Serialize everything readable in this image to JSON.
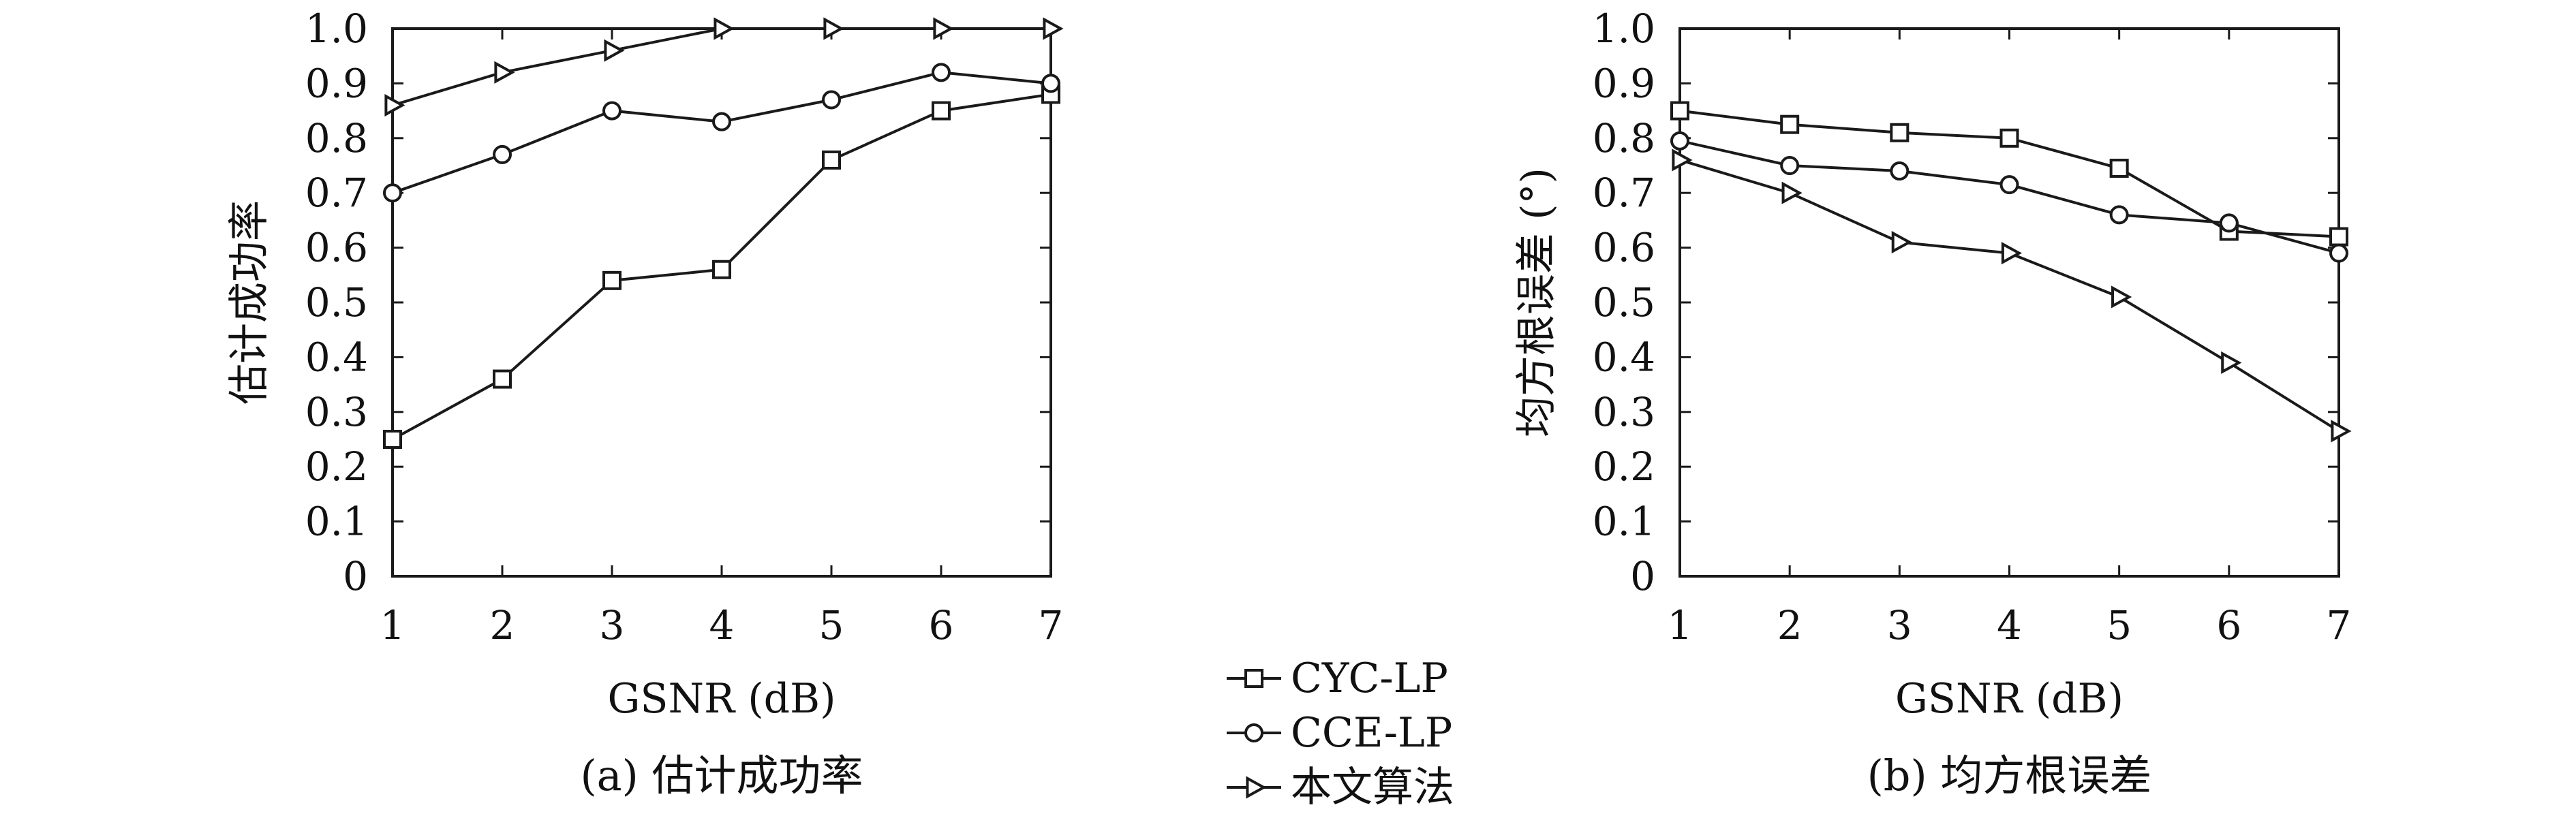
{
  "chart_data": [
    {
      "type": "line",
      "caption": "(a) 估计成功率",
      "xlabel": "GSNR (dB)",
      "ylabel": "估计成功率",
      "x": [
        1,
        2,
        3,
        4,
        5,
        6,
        7
      ],
      "xlim": [
        1,
        7
      ],
      "ylim": [
        0,
        1.0
      ],
      "xticks": [
        "1",
        "2",
        "3",
        "4",
        "5",
        "6",
        "7"
      ],
      "yticks": [
        "0",
        "0.1",
        "0.2",
        "0.3",
        "0.4",
        "0.5",
        "0.6",
        "0.7",
        "0.8",
        "0.9",
        "1.0"
      ],
      "grid": false,
      "series": [
        {
          "name": "CYC-LP",
          "marker": "square",
          "values": [
            0.25,
            0.36,
            0.54,
            0.56,
            0.76,
            0.85,
            0.88
          ]
        },
        {
          "name": "CCE-LP",
          "marker": "circle",
          "values": [
            0.7,
            0.77,
            0.85,
            0.83,
            0.87,
            0.92,
            0.9
          ]
        },
        {
          "name": "本文算法",
          "marker": "triangle-right",
          "values": [
            0.86,
            0.92,
            0.96,
            1.0,
            1.0,
            1.0,
            1.0
          ]
        }
      ]
    },
    {
      "type": "line",
      "caption": "(b) 均方根误差",
      "xlabel": "GSNR (dB)",
      "ylabel": "均方根误差 (°)",
      "x": [
        1,
        2,
        3,
        4,
        5,
        6,
        7
      ],
      "xlim": [
        1,
        7
      ],
      "ylim": [
        0,
        1.0
      ],
      "xticks": [
        "1",
        "2",
        "3",
        "4",
        "5",
        "6",
        "7"
      ],
      "yticks": [
        "0",
        "0.1",
        "0.2",
        "0.3",
        "0.4",
        "0.5",
        "0.6",
        "0.7",
        "0.8",
        "0.9",
        "1.0"
      ],
      "grid": false,
      "series": [
        {
          "name": "CYC-LP",
          "marker": "square",
          "values": [
            0.85,
            0.825,
            0.81,
            0.8,
            0.745,
            0.63,
            0.62
          ]
        },
        {
          "name": "CCE-LP",
          "marker": "circle",
          "values": [
            0.795,
            0.75,
            0.74,
            0.715,
            0.66,
            0.645,
            0.59
          ]
        },
        {
          "name": "本文算法",
          "marker": "triangle-right",
          "values": [
            0.76,
            0.7,
            0.61,
            0.59,
            0.51,
            0.39,
            0.265
          ]
        }
      ]
    }
  ],
  "legend": {
    "placement": "bottom-center",
    "items": [
      {
        "label": "CYC-LP",
        "marker": "square"
      },
      {
        "label": "CCE-LP",
        "marker": "circle"
      },
      {
        "label": "本文算法",
        "marker": "triangle-right"
      }
    ]
  },
  "colors": {
    "line": "#1a1a1a",
    "axis": "#1a1a1a",
    "background": "#ffffff"
  }
}
